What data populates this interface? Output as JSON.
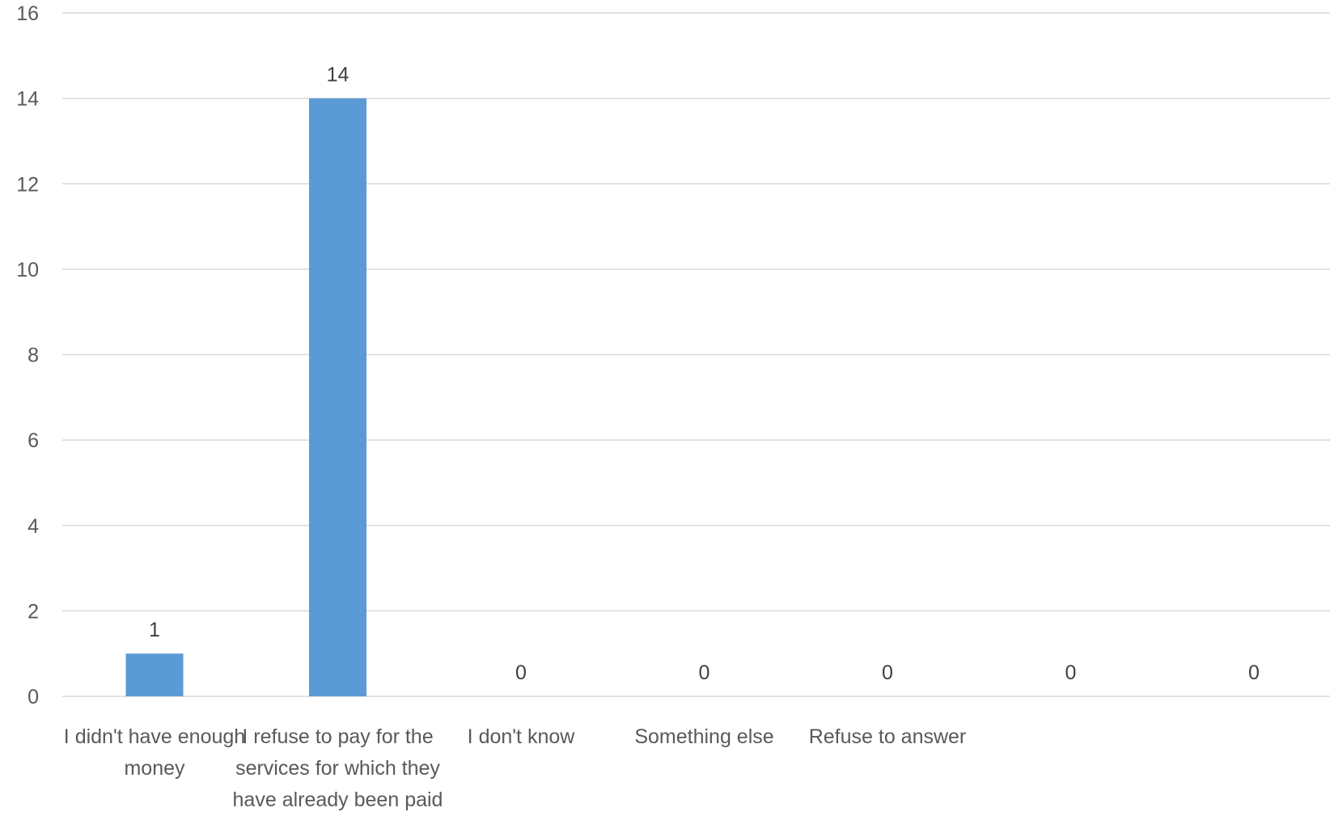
{
  "chart_data": {
    "type": "bar",
    "categories": [
      "I didn't have enough money",
      "I refuse to pay for the services for which they have already been paid",
      "I don't know",
      "Something else",
      "Refuse to answer",
      "",
      ""
    ],
    "category_label_lines": [
      [
        "I didn't have enough",
        "money"
      ],
      [
        "I refuse to pay for the",
        "services for which they",
        "have already been paid"
      ],
      [
        "I don't know"
      ],
      [
        "Something else"
      ],
      [
        "Refuse to answer"
      ],
      [],
      []
    ],
    "values": [
      1,
      14,
      0,
      0,
      0,
      0,
      0
    ],
    "data_labels": [
      "1",
      "14",
      "0",
      "0",
      "0",
      "0",
      "0"
    ],
    "y_ticks": [
      "0",
      "2",
      "4",
      "6",
      "8",
      "10",
      "12",
      "14",
      "16"
    ],
    "ylim": [
      0,
      16
    ],
    "grid": true,
    "legend": "none",
    "bar_color": "#5b9bd5",
    "gridline_color": "#d9d9d9",
    "title": "",
    "xlabel": "",
    "ylabel": ""
  }
}
